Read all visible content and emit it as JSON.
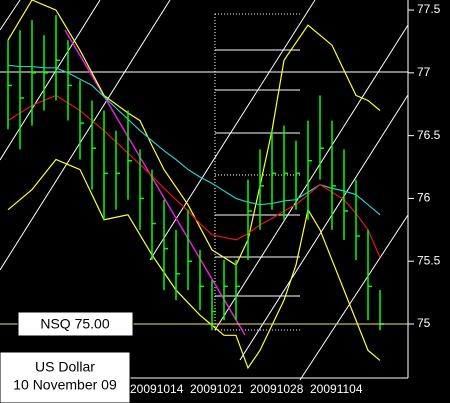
{
  "chart_data": {
    "type": "ohlc",
    "categories": [
      null,
      null,
      null,
      null,
      null,
      null,
      null,
      null,
      null,
      null,
      null,
      null,
      "20091014",
      null,
      null,
      null,
      null,
      "20091021",
      null,
      null,
      null,
      null,
      "20091028",
      null,
      null,
      null,
      null,
      "20091104",
      null,
      null,
      null,
      null
    ],
    "bars": {
      "color": "#00ff00",
      "high": [
        77.26,
        77.34,
        77.42,
        77.3,
        77.46,
        77.26,
        76.94,
        76.78,
        76.7,
        76.54,
        76.7,
        76.39,
        76.23,
        75.99,
        75.75,
        75.91,
        75.59,
        75.35,
        75.51,
        75.51,
        76.15,
        76.39,
        76.54,
        76.58,
        76.46,
        76.62,
        76.82,
        76.62,
        76.39,
        76.15,
        75.75,
        75.27
      ],
      "low": [
        76.55,
        76.39,
        76.58,
        76.7,
        76.78,
        76.62,
        76.31,
        76.07,
        75.83,
        75.91,
        75.99,
        75.75,
        75.51,
        75.27,
        75.19,
        75.27,
        75.11,
        74.95,
        75.03,
        75.03,
        75.51,
        75.75,
        75.91,
        75.83,
        75.91,
        75.83,
        76.15,
        75.75,
        75.67,
        75.51,
        75.03,
        74.95
      ],
      "close": [
        76.9,
        76.8,
        77.0,
        77.0,
        77.1,
        76.9,
        76.6,
        76.4,
        76.2,
        76.2,
        76.3,
        76.0,
        75.8,
        75.6,
        75.4,
        75.5,
        75.3,
        75.1,
        75.3,
        75.3,
        75.9,
        76.1,
        76.2,
        76.2,
        76.2,
        76.3,
        76.4,
        76.1,
        75.9,
        75.7,
        75.3,
        75.0
      ]
    },
    "lines": [
      {
        "color": "#ffff33",
        "values": [
          77.26,
          77.42,
          77.58,
          77.54,
          77.5,
          77.34,
          77.18,
          77.0,
          76.82,
          76.75,
          76.68,
          76.62,
          76.42,
          76.23,
          76.09,
          75.95,
          75.77,
          75.59,
          75.53,
          75.47,
          75.67,
          76.1,
          76.54,
          77.1,
          77.24,
          77.38,
          77.3,
          77.22,
          77.02,
          76.82,
          76.78,
          76.7
        ]
      },
      {
        "color": "#ffff33",
        "values": [
          75.91,
          75.99,
          76.07,
          76.19,
          76.31,
          76.27,
          76.23,
          76.03,
          75.83,
          75.85,
          75.87,
          75.71,
          75.55,
          75.41,
          75.27,
          75.17,
          75.07,
          74.99,
          74.91,
          74.91,
          74.65,
          74.79,
          74.99,
          75.19,
          75.47,
          75.91,
          75.75,
          75.51,
          75.27,
          75.03,
          74.79,
          74.71
        ]
      },
      {
        "color": "#22cccc",
        "values": [
          77.06,
          77.05,
          77.05,
          77.04,
          77.04,
          77.0,
          76.95,
          76.9,
          76.81,
          76.72,
          76.63,
          76.54,
          76.46,
          76.38,
          76.31,
          76.23,
          76.17,
          76.12,
          76.06,
          76.0,
          75.97,
          75.95,
          75.96,
          75.98,
          75.99,
          76.05,
          76.11,
          76.08,
          76.06,
          76.03,
          75.95,
          75.87
        ]
      },
      {
        "color": "#ee1111",
        "values": [
          76.62,
          76.68,
          76.74,
          76.78,
          76.82,
          76.76,
          76.7,
          76.62,
          76.54,
          76.45,
          76.36,
          76.27,
          76.18,
          76.08,
          75.99,
          75.9,
          75.8,
          75.71,
          75.69,
          75.67,
          75.72,
          75.79,
          75.84,
          75.9,
          75.95,
          76.03,
          76.11,
          76.05,
          75.99,
          75.88,
          75.75,
          75.53
        ]
      }
    ],
    "annotation": {
      "label": "NSQ 75.00",
      "value": 75,
      "color": "#e8e860"
    },
    "title": [
      "US Dollar",
      "10 November 09"
    ],
    "ylim": [
      74.57,
      77.58
    ],
    "yticks": [
      75,
      75.5,
      76,
      76.5,
      77,
      77.5
    ]
  }
}
